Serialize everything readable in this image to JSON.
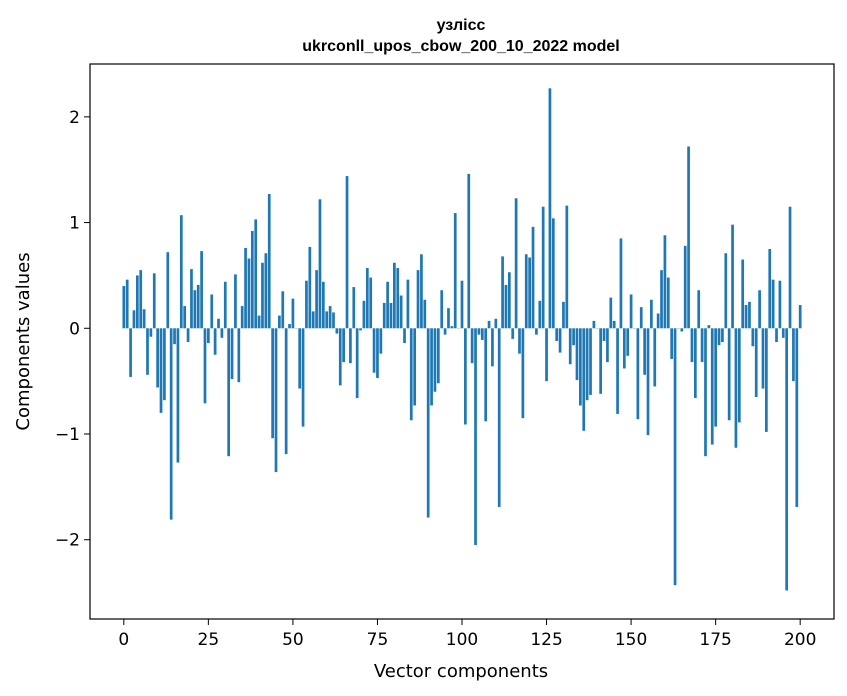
{
  "chart_data": {
    "type": "bar",
    "title": "узлісс",
    "subtitle": "ukrconll_upos_cbow_200_10_2022 model",
    "xlabel": "Vector components",
    "ylabel": "Components values",
    "xlim": [
      -10,
      210
    ],
    "ylim": [
      -2.75,
      2.5
    ],
    "xticks": [
      0,
      25,
      50,
      75,
      100,
      125,
      150,
      175,
      200
    ],
    "yticks": [
      -2,
      -1,
      0,
      1,
      2
    ],
    "ytick_labels": [
      "−2",
      "−1",
      "0",
      "1",
      "2"
    ],
    "bar_color": "#1f77b4",
    "values": [
      0.4,
      0.46,
      -0.46,
      0.17,
      0.5,
      0.55,
      0.18,
      -0.44,
      -0.08,
      0.52,
      -0.56,
      -0.8,
      -0.68,
      0.72,
      -1.81,
      -0.15,
      -1.27,
      1.07,
      0.21,
      -0.13,
      0.56,
      0.36,
      0.41,
      0.73,
      -0.71,
      -0.14,
      0.32,
      -0.25,
      0.09,
      -0.09,
      0.44,
      -1.21,
      -0.48,
      0.51,
      -0.51,
      0.21,
      0.76,
      0.66,
      0.92,
      1.03,
      0.12,
      0.62,
      0.71,
      1.27,
      -1.04,
      -1.36,
      0.12,
      0.35,
      -1.19,
      0.04,
      0.28,
      0.0,
      -0.57,
      -0.93,
      0.45,
      0.77,
      0.16,
      0.55,
      1.22,
      0.44,
      0.16,
      0.21,
      0.15,
      -0.05,
      -0.54,
      -0.32,
      1.44,
      -0.33,
      0.39,
      -0.66,
      -0.02,
      0.26,
      0.57,
      0.48,
      -0.42,
      -0.47,
      -0.24,
      0.24,
      0.44,
      0.24,
      0.62,
      0.57,
      0.31,
      -0.14,
      0.46,
      -0.87,
      -0.73,
      0.55,
      0.7,
      0.27,
      -1.79,
      -0.73,
      -0.6,
      -0.52,
      0.36,
      -0.06,
      0.19,
      0.02,
      1.09,
      0.0,
      0.45,
      -0.91,
      1.46,
      -0.33,
      -2.05,
      -0.06,
      -0.11,
      -0.88,
      0.07,
      -0.36,
      0.09,
      -1.69,
      0.68,
      0.41,
      0.53,
      -0.1,
      1.23,
      -0.24,
      -0.85,
      0.7,
      0.67,
      0.96,
      -0.06,
      0.26,
      1.15,
      -0.5,
      2.27,
      1.04,
      -0.12,
      -0.23,
      0.25,
      1.16,
      -0.34,
      -0.16,
      -0.49,
      -0.73,
      -0.97,
      -0.68,
      -0.63,
      0.07,
      0.0,
      -0.62,
      -0.12,
      -0.32,
      0.29,
      0.07,
      -0.81,
      0.85,
      -0.38,
      -0.26,
      0.32,
      0.0,
      -0.86,
      0.2,
      -0.44,
      -1.01,
      0.27,
      -0.55,
      0.14,
      0.55,
      0.88,
      0.48,
      -0.29,
      -2.43,
      0.0,
      -0.03,
      0.78,
      1.72,
      -0.32,
      -0.66,
      0.36,
      -0.32,
      -1.21,
      0.03,
      -1.1,
      -0.93,
      -0.16,
      -0.13,
      0.71,
      -0.87,
      0.98,
      -1.13,
      -0.89,
      0.65,
      0.22,
      0.25,
      -0.17,
      -0.65,
      0.36,
      -0.57,
      -0.98,
      0.75,
      0.46,
      -0.13,
      0.45,
      -0.09,
      -2.48,
      1.15,
      -0.5,
      -1.69,
      0.22
    ]
  }
}
